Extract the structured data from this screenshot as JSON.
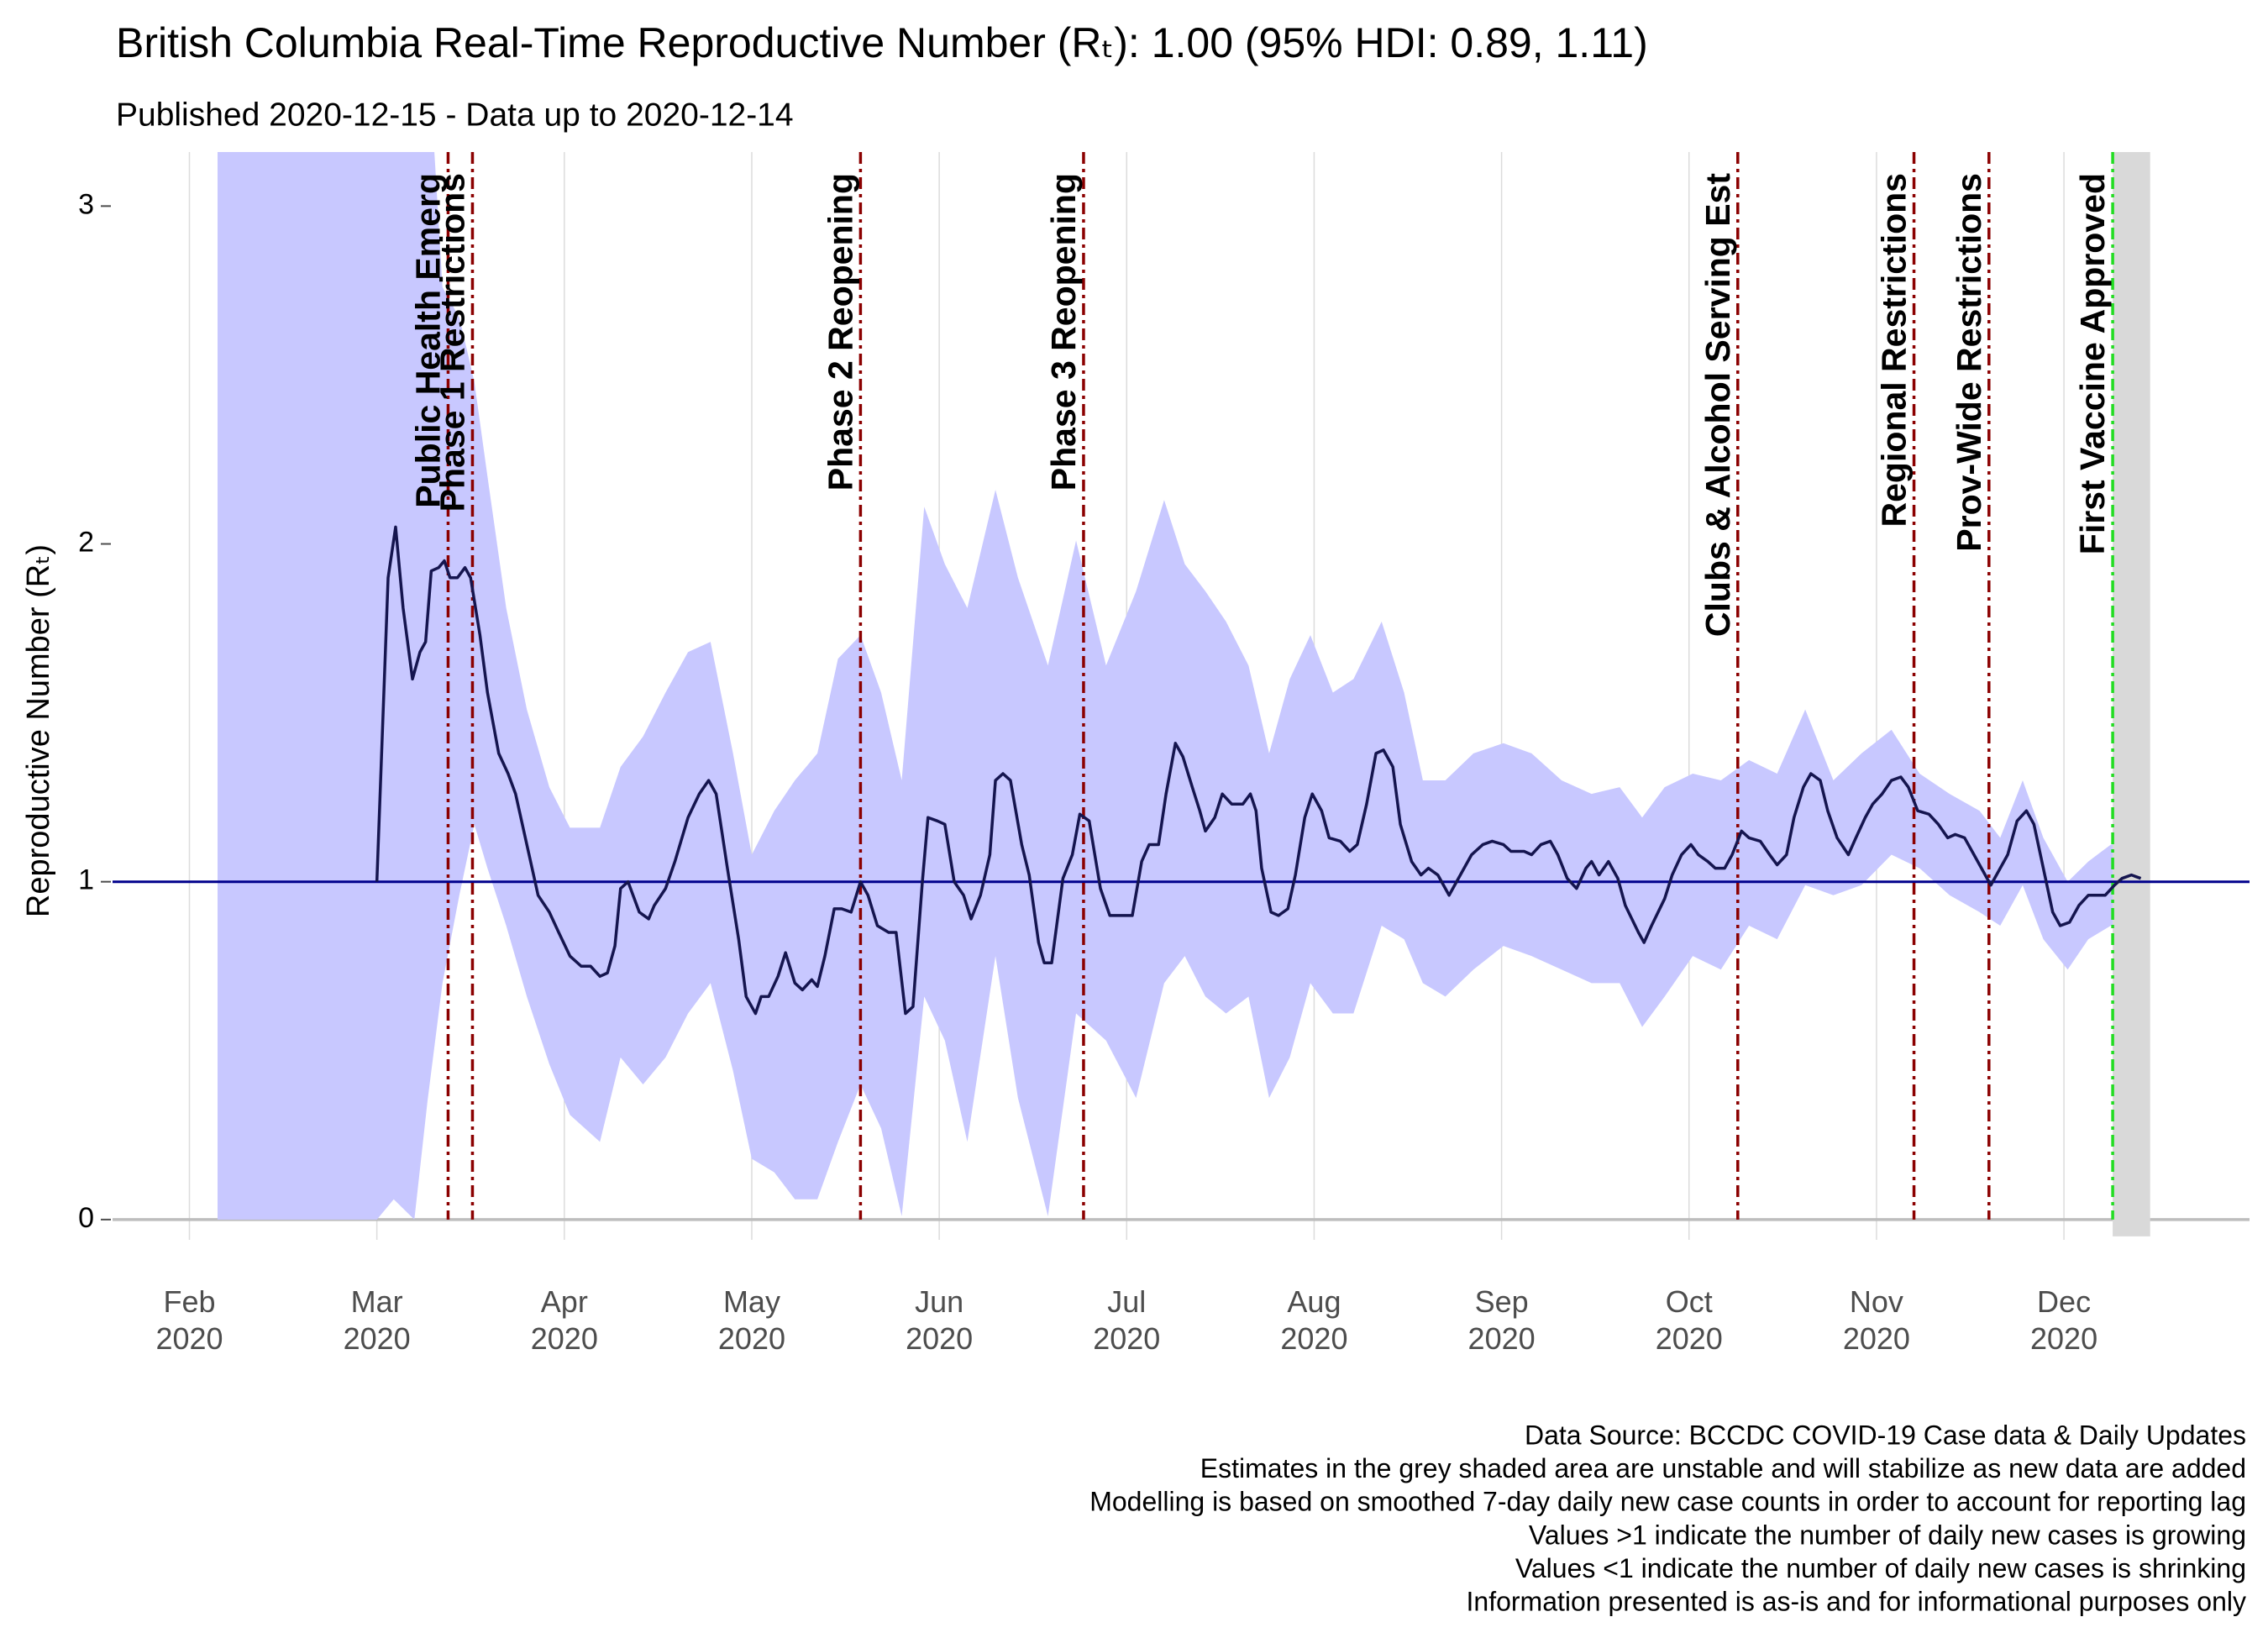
{
  "chart_data": {
    "type": "line",
    "title": "British Columbia Real-Time Reproductive Number (Rₜ): 1.00 (95% HDI: 0.89, 1.11)",
    "subtitle": "Published 2020-12-15 - Data up to 2020-12-14",
    "y_label": "Reproductive Number (Rₜ)",
    "xlim": [
      1.59,
      12.99
    ],
    "xticks": [
      {
        "value": 2,
        "label": "Feb\n2020"
      },
      {
        "value": 3,
        "label": "Mar\n2020"
      },
      {
        "value": 4,
        "label": "Apr\n2020"
      },
      {
        "value": 5,
        "label": "May\n2020"
      },
      {
        "value": 6,
        "label": "Jun\n2020"
      },
      {
        "value": 7,
        "label": "Jul\n2020"
      },
      {
        "value": 8,
        "label": "Aug\n2020"
      },
      {
        "value": 9,
        "label": "Sep\n2020"
      },
      {
        "value": 10,
        "label": "Oct\n2020"
      },
      {
        "value": 11,
        "label": "Nov\n2020"
      },
      {
        "value": 12,
        "label": "Dec\n2020"
      }
    ],
    "ylim": [
      -0.06,
      3.16
    ],
    "yticks": [
      0,
      1,
      2,
      3
    ],
    "grid": true,
    "series": [
      {
        "color": "#15154f",
        "x": [
          3.0,
          3.06,
          3.1,
          3.14,
          3.19,
          3.23,
          3.26,
          3.29,
          3.33,
          3.36,
          3.39,
          3.43,
          3.47,
          3.5,
          3.55,
          3.59,
          3.65,
          3.7,
          3.74,
          3.8,
          3.86,
          3.92,
          3.97,
          4.03,
          4.09,
          4.14,
          4.19,
          4.23,
          4.27,
          4.3,
          4.34,
          4.4,
          4.45,
          4.48,
          4.54,
          4.59,
          4.66,
          4.72,
          4.77,
          4.81,
          4.87,
          4.93,
          4.97,
          5.02,
          5.05,
          5.09,
          5.14,
          5.18,
          5.23,
          5.27,
          5.32,
          5.35,
          5.39,
          5.44,
          5.48,
          5.53,
          5.58,
          5.62,
          5.67,
          5.73,
          5.77,
          5.82,
          5.86,
          5.91,
          5.94,
          5.99,
          6.03,
          6.08,
          6.13,
          6.17,
          6.22,
          6.27,
          6.3,
          6.34,
          6.38,
          6.44,
          6.48,
          6.53,
          6.56,
          6.6,
          6.66,
          6.71,
          6.75,
          6.8,
          6.86,
          6.91,
          6.97,
          7.03,
          7.08,
          7.12,
          7.17,
          7.21,
          7.26,
          7.3,
          7.35,
          7.39,
          7.42,
          7.47,
          7.51,
          7.56,
          7.62,
          7.66,
          7.69,
          7.72,
          7.77,
          7.81,
          7.86,
          7.9,
          7.95,
          7.99,
          8.04,
          8.08,
          8.14,
          8.19,
          8.23,
          8.28,
          8.33,
          8.37,
          8.42,
          8.46,
          8.52,
          8.57,
          8.61,
          8.66,
          8.72,
          8.78,
          8.84,
          8.9,
          8.95,
          9.01,
          9.05,
          9.12,
          9.16,
          9.21,
          9.26,
          9.3,
          9.35,
          9.4,
          9.45,
          9.48,
          9.52,
          9.57,
          9.62,
          9.66,
          9.73,
          9.76,
          9.8,
          9.87,
          9.91,
          9.96,
          10.01,
          10.05,
          10.1,
          10.14,
          10.19,
          10.23,
          10.28,
          10.32,
          10.38,
          10.43,
          10.47,
          10.52,
          10.56,
          10.61,
          10.65,
          10.7,
          10.74,
          10.79,
          10.85,
          10.89,
          10.94,
          10.98,
          11.03,
          11.08,
          11.13,
          11.17,
          11.22,
          11.28,
          11.33,
          11.38,
          11.42,
          11.47,
          11.52,
          11.56,
          11.61,
          11.66,
          11.7,
          11.75,
          11.8,
          11.84,
          11.89,
          11.94,
          11.98,
          12.03,
          12.08,
          12.13,
          12.17,
          12.22,
          12.27,
          12.31,
          12.36,
          12.41
        ],
        "values": [
          1.0,
          1.9,
          2.05,
          1.81,
          1.6,
          1.68,
          1.71,
          1.92,
          1.93,
          1.95,
          1.9,
          1.9,
          1.93,
          1.9,
          1.73,
          1.56,
          1.38,
          1.32,
          1.26,
          1.11,
          0.96,
          0.91,
          0.85,
          0.78,
          0.75,
          0.75,
          0.72,
          0.73,
          0.81,
          0.98,
          1.0,
          0.91,
          0.89,
          0.93,
          0.98,
          1.06,
          1.19,
          1.26,
          1.3,
          1.26,
          1.04,
          0.83,
          0.66,
          0.61,
          0.66,
          0.66,
          0.72,
          0.79,
          0.7,
          0.68,
          0.71,
          0.69,
          0.78,
          0.92,
          0.92,
          0.91,
          1.0,
          0.96,
          0.87,
          0.85,
          0.85,
          0.61,
          0.63,
          1.0,
          1.19,
          1.18,
          1.17,
          1.0,
          0.96,
          0.89,
          0.96,
          1.08,
          1.3,
          1.32,
          1.3,
          1.11,
          1.02,
          0.82,
          0.76,
          0.76,
          1.01,
          1.08,
          1.2,
          1.18,
          0.98,
          0.9,
          0.9,
          0.9,
          1.06,
          1.11,
          1.11,
          1.26,
          1.41,
          1.37,
          1.28,
          1.21,
          1.15,
          1.19,
          1.26,
          1.23,
          1.23,
          1.26,
          1.21,
          1.04,
          0.91,
          0.9,
          0.92,
          1.02,
          1.19,
          1.26,
          1.21,
          1.13,
          1.12,
          1.09,
          1.11,
          1.23,
          1.38,
          1.39,
          1.34,
          1.17,
          1.06,
          1.02,
          1.04,
          1.02,
          0.96,
          1.02,
          1.08,
          1.11,
          1.12,
          1.11,
          1.09,
          1.09,
          1.08,
          1.11,
          1.12,
          1.08,
          1.01,
          0.98,
          1.04,
          1.06,
          1.02,
          1.06,
          1.01,
          0.93,
          0.85,
          0.82,
          0.87,
          0.95,
          1.02,
          1.08,
          1.11,
          1.08,
          1.06,
          1.04,
          1.04,
          1.08,
          1.15,
          1.13,
          1.12,
          1.08,
          1.05,
          1.08,
          1.19,
          1.28,
          1.32,
          1.3,
          1.21,
          1.13,
          1.08,
          1.13,
          1.19,
          1.23,
          1.26,
          1.3,
          1.31,
          1.28,
          1.21,
          1.2,
          1.17,
          1.13,
          1.14,
          1.13,
          1.08,
          1.04,
          0.99,
          1.04,
          1.08,
          1.18,
          1.21,
          1.17,
          1.04,
          0.91,
          0.87,
          0.88,
          0.93,
          0.96,
          0.96,
          0.96,
          0.99,
          1.01,
          1.02,
          1.01
        ]
      }
    ],
    "band": {
      "color": "#c8c8ff",
      "x": [
        2.15,
        3.0,
        3.09,
        3.2,
        3.27,
        3.35,
        3.44,
        3.52,
        3.59,
        3.69,
        3.8,
        3.92,
        4.03,
        4.19,
        4.3,
        4.42,
        4.54,
        4.66,
        4.78,
        4.9,
        5.0,
        5.12,
        5.23,
        5.35,
        5.46,
        5.58,
        5.69,
        5.8,
        5.92,
        6.03,
        6.15,
        6.3,
        6.42,
        6.58,
        6.73,
        6.89,
        7.05,
        7.2,
        7.31,
        7.42,
        7.53,
        7.65,
        7.76,
        7.87,
        7.98,
        8.1,
        8.21,
        8.36,
        8.48,
        8.58,
        8.7,
        8.85,
        9.01,
        9.16,
        9.32,
        9.48,
        9.63,
        9.75,
        9.87,
        10.02,
        10.17,
        10.32,
        10.47,
        10.62,
        10.77,
        10.92,
        11.08,
        11.23,
        11.39,
        11.55,
        11.66,
        11.78,
        11.89,
        12.02,
        12.13,
        12.25,
        12.42
      ],
      "lower": [
        0,
        0,
        0.06,
        0,
        0.35,
        0.7,
        0.96,
        1.17,
        1.04,
        0.87,
        0.66,
        0.46,
        0.31,
        0.23,
        0.48,
        0.4,
        0.48,
        0.61,
        0.7,
        0.44,
        0.18,
        0.14,
        0.06,
        0.06,
        0.23,
        0.4,
        0.27,
        0.01,
        0.66,
        0.53,
        0.23,
        0.78,
        0.36,
        0.01,
        0.61,
        0.53,
        0.36,
        0.7,
        0.78,
        0.66,
        0.61,
        0.66,
        0.36,
        0.48,
        0.7,
        0.61,
        0.61,
        0.87,
        0.83,
        0.7,
        0.66,
        0.74,
        0.81,
        0.78,
        0.74,
        0.7,
        0.7,
        0.57,
        0.66,
        0.78,
        0.74,
        0.87,
        0.83,
        0.99,
        0.96,
        0.99,
        1.08,
        1.04,
        0.96,
        0.91,
        0.87,
        0.99,
        0.83,
        0.74,
        0.83,
        0.87,
        0.9
      ],
      "upper": [
        3.5,
        3.5,
        3.5,
        3.5,
        3.5,
        2.76,
        2.67,
        2.48,
        2.2,
        1.81,
        1.51,
        1.28,
        1.16,
        1.16,
        1.34,
        1.43,
        1.56,
        1.68,
        1.71,
        1.38,
        1.08,
        1.21,
        1.3,
        1.38,
        1.66,
        1.73,
        1.56,
        1.3,
        2.11,
        1.94,
        1.81,
        2.16,
        1.9,
        1.64,
        2.01,
        1.64,
        1.86,
        2.13,
        1.94,
        1.86,
        1.77,
        1.64,
        1.38,
        1.6,
        1.73,
        1.56,
        1.6,
        1.77,
        1.56,
        1.3,
        1.3,
        1.38,
        1.41,
        1.38,
        1.3,
        1.26,
        1.28,
        1.19,
        1.28,
        1.32,
        1.3,
        1.36,
        1.32,
        1.51,
        1.3,
        1.38,
        1.45,
        1.32,
        1.26,
        1.21,
        1.13,
        1.3,
        1.13,
        1.0,
        1.06,
        1.11,
        1.12
      ]
    },
    "unstable_region": {
      "xlim": [
        12.26,
        12.46
      ],
      "color": "#d9d9d9"
    },
    "reference_line": {
      "y": 1,
      "color": "#00008b"
    },
    "events": [
      {
        "x": 3.38,
        "label": "Public Health Emerg",
        "color": "#8b0000"
      },
      {
        "x": 3.51,
        "label": "Phase 1 Restrictions",
        "color": "#8b0000"
      },
      {
        "x": 5.58,
        "label": "Phase 2 Reopening",
        "color": "#8b0000"
      },
      {
        "x": 6.77,
        "label": "Phase 3 Reopening",
        "color": "#8b0000"
      },
      {
        "x": 10.26,
        "label": "Clubs & Alcohol Serving Est",
        "color": "#8b0000"
      },
      {
        "x": 11.2,
        "label": "Regional Restrictions",
        "color": "#8b0000"
      },
      {
        "x": 11.6,
        "label": "Prov-Wide Restrictions",
        "color": "#8b0000"
      },
      {
        "x": 12.26,
        "label": "First Vaccine Approved",
        "color": "#22dd22"
      }
    ],
    "notes": [
      "Data Source: BCCDC COVID-19 Case data & Daily Updates",
      "Estimates in the grey shaded area are unstable and will stabilize as new data are added",
      "Modelling is based on smoothed 7-day daily new case counts in order to account for reporting lag",
      "Values >1 indicate the number of daily new cases is growing",
      "Values <1 indicate the number of daily new cases is shrinking",
      "Information presented is as-is and for informational purposes only"
    ]
  }
}
